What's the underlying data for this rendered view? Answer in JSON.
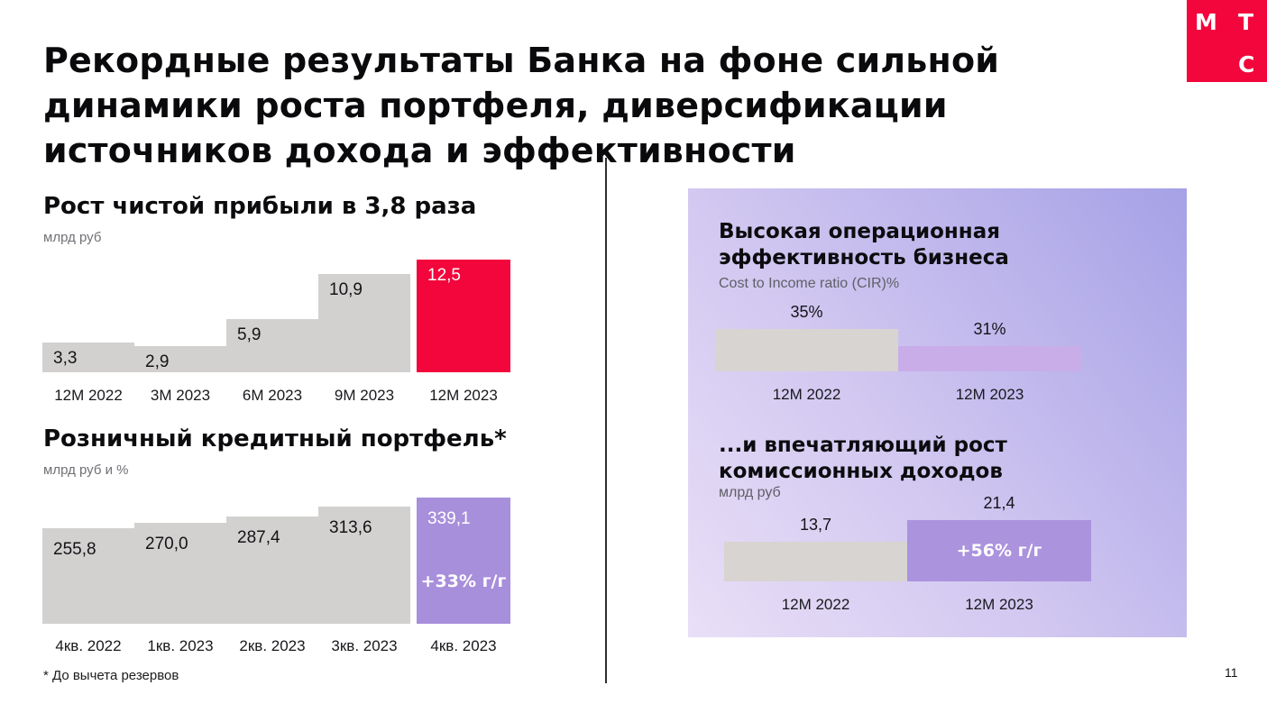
{
  "slide": {
    "title_lines": [
      "Рекордные результаты Банка на фоне сильной",
      "динамики роста портфеля, диверсификации",
      "источников дохода и эффективности"
    ],
    "footnote": "* До вычета резервов",
    "page_number": "11"
  },
  "logo": {
    "letters": [
      "М",
      "Т",
      "С"
    ],
    "color": "#F2063C"
  },
  "colors": {
    "accent_red": "#F2063C",
    "accent_purple": "#A78FDB",
    "panel_purple_light": "#C9ADE8",
    "panel_purple": "#AB93DE",
    "bar_gray": "#D2D1CF",
    "panel_gradient_start": "#E9DFF7",
    "panel_gradient_end": "#A6A1E6",
    "divider": "#2E2E33"
  },
  "chart_data": [
    {
      "id": "net-profit",
      "type": "bar",
      "title": "Рост чистой прибыли в 3,8 раза",
      "ylabel": "млрд руб",
      "categories": [
        "12М 2022",
        "3М 2023",
        "6М 2023",
        "9М 2023",
        "12М 2023"
      ],
      "values": [
        3.3,
        2.9,
        5.9,
        10.9,
        12.5
      ],
      "value_labels": [
        "3,3",
        "2,9",
        "5,9",
        "10,9",
        "12,5"
      ],
      "highlight_index": 4,
      "annotation": null,
      "grid": false,
      "legend": null,
      "colors": {
        "bar": "#D2D1CF",
        "highlight": "#F2063C",
        "label": "#141418",
        "highlight_label": "#FFFFFF"
      }
    },
    {
      "id": "retail-portfolio",
      "type": "bar",
      "title": "Розничный кредитный портфель*",
      "ylabel": "млрд руб и %",
      "categories": [
        "4кв. 2022",
        "1кв. 2023",
        "2кв. 2023",
        "3кв. 2023",
        "4кв. 2023"
      ],
      "values": [
        255.8,
        270.0,
        287.4,
        313.6,
        339.1
      ],
      "value_labels": [
        "255,8",
        "270,0",
        "287,4",
        "313,6",
        "339,1"
      ],
      "highlight_index": 4,
      "annotation": "+33% г/г",
      "grid": false,
      "legend": null,
      "colors": {
        "bar": "#D2D1CF",
        "highlight": "#A78FDB",
        "label": "#141418",
        "highlight_label": "#FFFFFF"
      }
    },
    {
      "id": "cir",
      "type": "bar",
      "title": "Высокая операционная эффективность бизнеса",
      "ylabel": "Cost to Income ratio (CIR)%",
      "categories": [
        "12М 2022",
        "12М 2023"
      ],
      "values": [
        35,
        31
      ],
      "value_labels": [
        "35%",
        "31%"
      ],
      "highlight_index": 1,
      "annotation": null,
      "grid": false,
      "legend": null,
      "colors": {
        "bar": "#D7D4D1",
        "highlight": "#C9ADE8",
        "label": "#141418",
        "highlight_label": "#141418"
      }
    },
    {
      "id": "fee-income",
      "type": "bar",
      "title": "...и впечатляющий рост комиссионных доходов",
      "ylabel": "млрд руб",
      "categories": [
        "12М 2022",
        "12М 2023"
      ],
      "values": [
        13.7,
        21.4
      ],
      "value_labels": [
        "13,7",
        "21,4"
      ],
      "highlight_index": 1,
      "annotation": "+56% г/г",
      "grid": false,
      "legend": null,
      "colors": {
        "bar": "#D7D4D1",
        "highlight": "#AB93DE",
        "label": "#141418",
        "highlight_label": "#141418"
      }
    }
  ]
}
